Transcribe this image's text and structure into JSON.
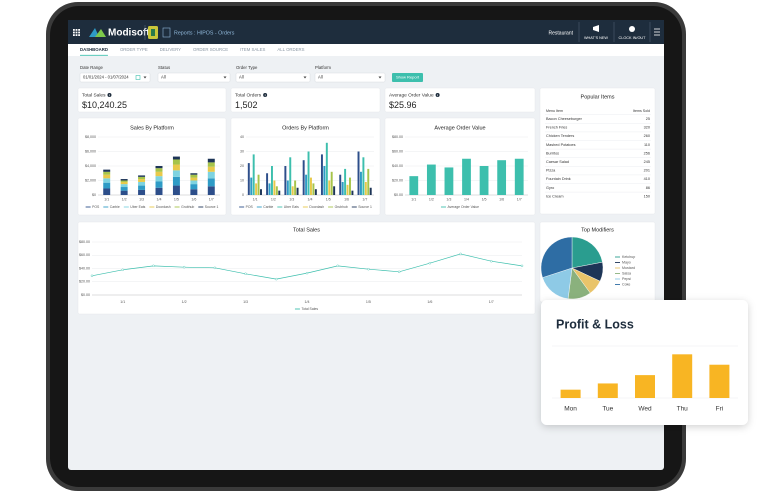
{
  "header": {
    "brand": "Modisoft",
    "breadcrumb": "Reports : HIPOS - Orders",
    "location": "Restaurant",
    "whats_new": "WHAT'S NEW",
    "clock": "CLOCK IN/OUT"
  },
  "tabs": [
    "DASHBOARD",
    "ORDER TYPE",
    "DELIVERY",
    "ORDER SOURCE",
    "ITEM SALES",
    "ALL ORDERS"
  ],
  "filters": [
    {
      "label": "Date Range",
      "value": "01/01/2024 - 01/07/2024"
    },
    {
      "label": "Status",
      "value": "All"
    },
    {
      "label": "Order Type",
      "value": "All"
    },
    {
      "label": "Platform",
      "value": "All"
    }
  ],
  "button": "Show Report",
  "kpis": [
    {
      "label": "Total Sales",
      "value": "$10,240.25"
    },
    {
      "label": "Total Orders",
      "value": "1,502"
    },
    {
      "label": "Average Order Value",
      "value": "$25.96"
    }
  ],
  "popular_items": {
    "title": "Popular Items",
    "columns": [
      "Menu Item",
      "Items Sold"
    ],
    "rows": [
      [
        "Bacon Cheeseburger",
        25
      ],
      [
        "French Fries",
        320
      ],
      [
        "Chicken Tenders",
        260
      ],
      [
        "Mashed Potatoes",
        110
      ],
      [
        "Burritos",
        256
      ],
      [
        "Caesar Salad",
        245
      ],
      [
        "Pizza",
        201
      ],
      [
        "Fountain Drink",
        410
      ],
      [
        "Gyro",
        86
      ],
      [
        "Ice Cream",
        150
      ]
    ]
  },
  "chart_data": [
    {
      "type": "bar",
      "stacked": true,
      "title": "Sales By Platform",
      "categories": [
        "1/1",
        "1/2",
        "1/3",
        "1/4",
        "1/5",
        "1/6",
        "1/7"
      ],
      "series": [
        {
          "name": "POS",
          "color": "#2d4e8a",
          "values": [
            900,
            600,
            700,
            1000,
            1300,
            800,
            1200
          ]
        },
        {
          "name": "Carbie",
          "color": "#2e9bc6",
          "values": [
            800,
            500,
            600,
            900,
            1200,
            700,
            1100
          ]
        },
        {
          "name": "Uber Eats",
          "color": "#7ed3e0",
          "values": [
            600,
            400,
            500,
            700,
            900,
            500,
            900
          ]
        },
        {
          "name": "Doordash",
          "color": "#e8c94a",
          "values": [
            500,
            300,
            400,
            600,
            800,
            400,
            700
          ]
        },
        {
          "name": "Grubhub",
          "color": "#a6c44a",
          "values": [
            400,
            200,
            300,
            500,
            700,
            400,
            600
          ]
        },
        {
          "name": "Source 1",
          "color": "#1d3557",
          "values": [
            300,
            200,
            200,
            300,
            400,
            200,
            500
          ]
        }
      ],
      "ylim": [
        0,
        8000
      ],
      "yticks": [
        {
          "value": 0,
          "label": "$0"
        },
        {
          "value": 2000,
          "label": "$2,000"
        },
        {
          "value": 4000,
          "label": "$4,000"
        },
        {
          "value": 6000,
          "label": "$6,000"
        },
        {
          "value": 8000,
          "label": "$8,000"
        }
      ],
      "grid": true
    },
    {
      "type": "bar",
      "title": "Orders By Platform",
      "categories": [
        "1/1",
        "1/2",
        "1/3",
        "1/4",
        "1/5",
        "1/6",
        "1/7"
      ],
      "series": [
        {
          "name": "POS",
          "color": "#2d4e8a",
          "values": [
            22,
            15,
            20,
            24,
            28,
            14,
            30
          ]
        },
        {
          "name": "Carbie",
          "color": "#2e9bc6",
          "values": [
            12,
            8,
            10,
            14,
            20,
            9,
            16
          ]
        },
        {
          "name": "Uber Eats",
          "color": "#3dbfad",
          "values": [
            28,
            20,
            26,
            30,
            36,
            18,
            26
          ]
        },
        {
          "name": "Doordash",
          "color": "#e8c94a",
          "values": [
            8,
            10,
            6,
            12,
            10,
            7,
            9
          ]
        },
        {
          "name": "Grubhub",
          "color": "#a6c44a",
          "values": [
            14,
            6,
            10,
            8,
            16,
            12,
            18
          ]
        },
        {
          "name": "Source 1",
          "color": "#1d3557",
          "values": [
            4,
            3,
            5,
            4,
            6,
            3,
            5
          ]
        }
      ],
      "ylim": [
        0,
        40
      ],
      "yticks": [
        0,
        10,
        20,
        30,
        40
      ],
      "grid": true
    },
    {
      "type": "bar",
      "title": "Average Order Value",
      "categories": [
        "1/1",
        "1/2",
        "1/3",
        "1/4",
        "1/5",
        "1/6",
        "1/7"
      ],
      "series": [
        {
          "name": "Average Order Value",
          "color": "#3dbfad",
          "values": [
            26,
            42,
            38,
            50,
            40,
            48,
            50
          ]
        }
      ],
      "ylim": [
        0,
        80
      ],
      "yticks": [
        {
          "value": 0,
          "label": "$0.00"
        },
        {
          "value": 20,
          "label": "$20.00"
        },
        {
          "value": 40,
          "label": "$40.00"
        },
        {
          "value": 60,
          "label": "$60.00"
        },
        {
          "value": 80,
          "label": "$80.00"
        }
      ],
      "grid": true
    },
    {
      "type": "line",
      "title": "Total Sales",
      "categories": [
        null,
        "1/1",
        null,
        "1/2",
        null,
        "1/3",
        null,
        "1/4",
        null,
        "1/5",
        null,
        "1/6",
        null,
        "1/7",
        null
      ],
      "series": [
        {
          "name": "Total Sales",
          "color": "#3dbfad",
          "values": [
            29,
            38,
            44,
            42,
            41,
            32,
            24,
            33,
            44,
            39,
            35,
            48,
            62,
            51,
            44
          ]
        }
      ],
      "ylim": [
        0,
        80
      ],
      "yticks": [
        {
          "value": 0,
          "label": "$0.00"
        },
        {
          "value": 20,
          "label": "$20.00"
        },
        {
          "value": 40,
          "label": "$40.00"
        },
        {
          "value": 60,
          "label": "$60.00"
        },
        {
          "value": 80,
          "label": "$80.00"
        }
      ],
      "grid": true
    },
    {
      "type": "pie",
      "title": "Top Modifiers",
      "labels": [
        "Ketchup",
        "Mayo",
        "Mustard",
        "Salsa",
        "Pepsi",
        "Coke"
      ],
      "values": [
        22,
        10,
        8,
        12,
        18,
        30
      ],
      "colors": [
        "#2a9d8f",
        "#1d3557",
        "#e9c46a",
        "#8ab17d",
        "#8ecae6",
        "#2e6da4"
      ]
    },
    {
      "type": "bar",
      "title": "Profit & Loss",
      "categories": [
        "Mon",
        "Tue",
        "Wed",
        "Thu",
        "Fri"
      ],
      "values": [
        8,
        14,
        22,
        42,
        32
      ],
      "color": "#f8b523",
      "ylim": [
        0,
        50
      ],
      "grid": true
    }
  ]
}
